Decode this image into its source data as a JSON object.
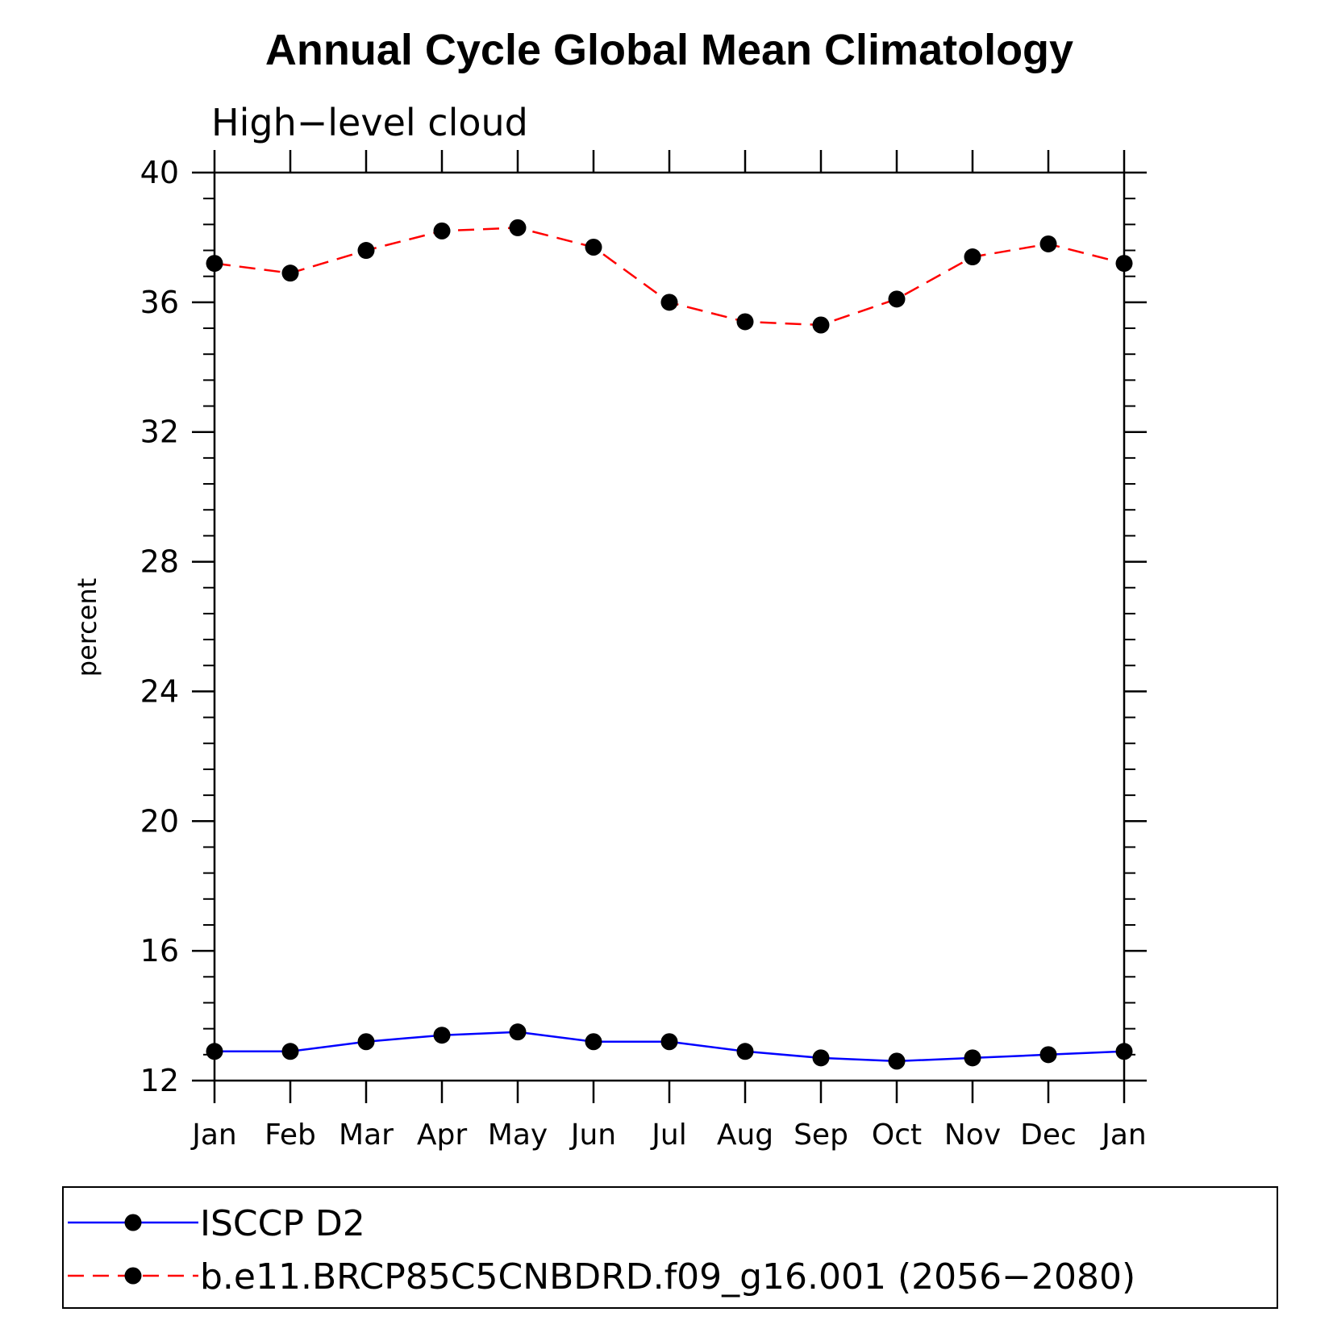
{
  "chart_data": {
    "type": "line",
    "title": "Annual Cycle Global Mean Climatology",
    "subtitle": "High−level cloud",
    "ylabel": "percent",
    "xlabel": "",
    "categories": [
      "Jan",
      "Feb",
      "Mar",
      "Apr",
      "May",
      "Jun",
      "Jul",
      "Aug",
      "Sep",
      "Oct",
      "Nov",
      "Dec",
      "Jan"
    ],
    "ylim": [
      12,
      40
    ],
    "yticks": [
      12,
      16,
      20,
      24,
      28,
      32,
      36,
      40
    ],
    "ytick_labels": [
      "12",
      "16",
      "20",
      "24",
      "28",
      "32",
      "36",
      "40"
    ],
    "legend_position": "bottom",
    "series": [
      {
        "name": "ISCCP D2",
        "color": "#0000ff",
        "line_style": "solid",
        "marker": "filled-circle",
        "values": [
          12.9,
          12.9,
          13.2,
          13.4,
          13.5,
          13.2,
          13.2,
          12.9,
          12.7,
          12.6,
          12.7,
          12.8,
          12.9
        ]
      },
      {
        "name": "b.e11.BRCP85C5CNBDRD.f09_g16.001 (2056−2080)",
        "color": "#ff0000",
        "line_style": "dashed",
        "marker": "filled-circle",
        "values": [
          37.2,
          36.9,
          37.6,
          38.2,
          38.3,
          37.7,
          36.0,
          35.4,
          35.3,
          36.1,
          37.4,
          37.8,
          37.2
        ]
      }
    ]
  }
}
